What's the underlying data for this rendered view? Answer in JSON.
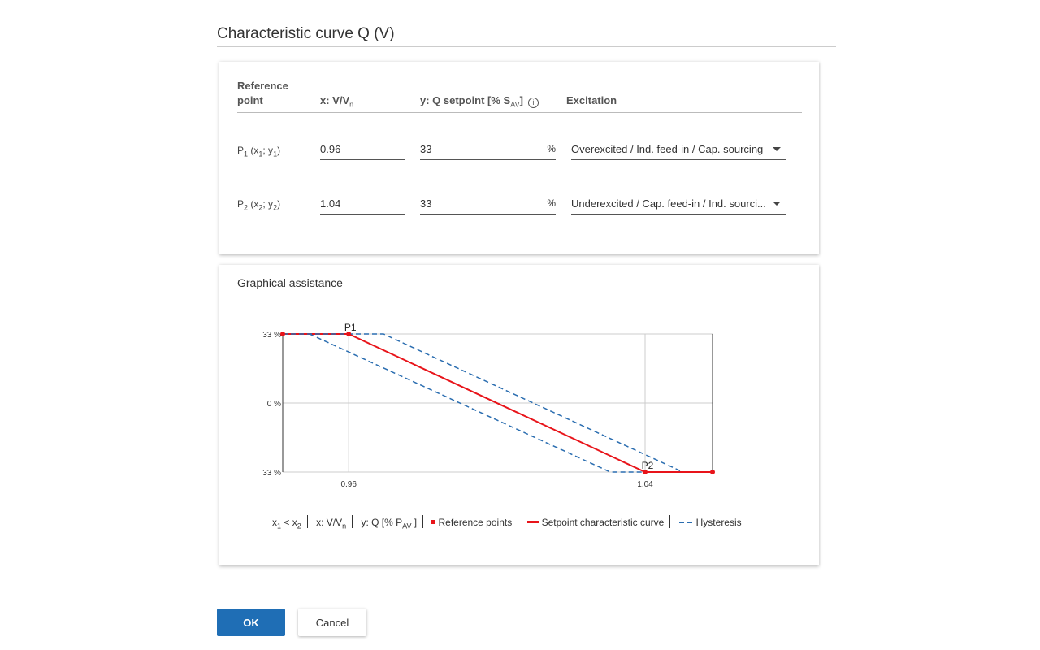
{
  "title": "Characteristic curve Q (V)",
  "table": {
    "headers": {
      "ref": "Reference",
      "ref2": "point",
      "x": "x: V/V",
      "x_sub": "n",
      "y": "y: Q setpoint [% S",
      "y_sub": "AV",
      "y_end": "]",
      "info": "i",
      "exc": "Excitation"
    },
    "rows": [
      {
        "label": "P",
        "label_sub": "1",
        "label_rest": " (x",
        "x_sub": "1",
        "sep": "; y",
        "y_sub": "1",
        "close": ")",
        "x": "0.96",
        "y": "33",
        "unit": "%",
        "excitation": "Overexcited / Ind. feed-in / Cap. sourcing"
      },
      {
        "label": "P",
        "label_sub": "2",
        "label_rest": " (x",
        "x_sub": "2",
        "sep": "; y",
        "y_sub": "2",
        "close": ")",
        "x": "1.04",
        "y": "33",
        "unit": "%",
        "excitation": "Underexcited / Cap. feed-in / Ind. sourci..."
      }
    ]
  },
  "graph": {
    "title": "Graphical assistance"
  },
  "chart_data": {
    "type": "line",
    "xlim": [
      0.9422,
      1.0582
    ],
    "ylim": [
      -33,
      33
    ],
    "x_ticks": [
      {
        "v": 0.96,
        "label": "0.96"
      },
      {
        "v": 1.04,
        "label": "1.04"
      }
    ],
    "y_ticks": [
      {
        "v": 33,
        "label": "33 %"
      },
      {
        "v": 0,
        "label": "0 %"
      },
      {
        "v": -33,
        "label": "33 %"
      }
    ],
    "points": [
      {
        "name": "P1",
        "x": 0.96,
        "y": 33
      },
      {
        "name": "P2",
        "x": 1.04,
        "y": -33
      }
    ],
    "series": [
      {
        "name": "Setpoint characteristic curve",
        "color": "#e8141a",
        "style": "solid",
        "x": [
          0.9422,
          0.96,
          1.04,
          1.0582
        ],
        "y": [
          33,
          33,
          -33,
          -33
        ]
      },
      {
        "name": "Hysteresis upper",
        "color": "#2a6db0",
        "style": "dashed",
        "x": [
          0.9422,
          0.9694,
          1.0502
        ],
        "y": [
          33,
          33,
          -33
        ]
      },
      {
        "name": "Hysteresis lower",
        "color": "#2a6db0",
        "style": "dashed",
        "x": [
          0.9494,
          1.0306,
          1.04
        ],
        "y": [
          33,
          -33,
          -33
        ]
      }
    ],
    "grid": true
  },
  "legend": {
    "cond": "x",
    "cond_s1": "1",
    "cond_mid": " < x",
    "cond_s2": "2",
    "xaxis": "x: V/V",
    "xaxis_sub": "n",
    "yaxis": "y: Q [% P",
    "yaxis_sub": "AV",
    "yaxis_end": " ]",
    "ref": "Reference points",
    "curve": "Setpoint characteristic curve",
    "hyst": "Hysteresis"
  },
  "buttons": {
    "ok": "OK",
    "cancel": "Cancel"
  }
}
